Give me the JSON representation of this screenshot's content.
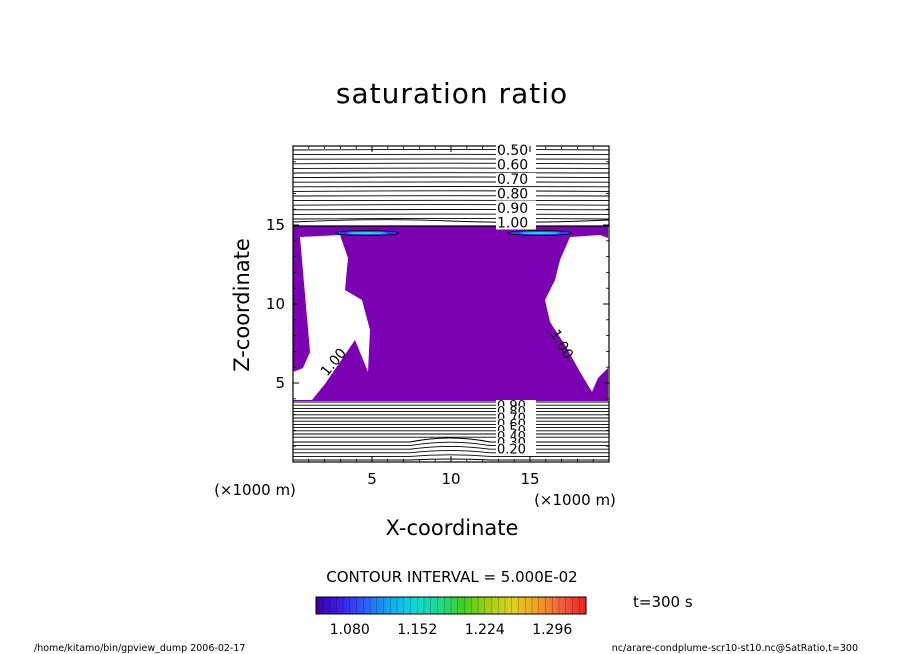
{
  "chart_data": {
    "type": "contour",
    "title": "saturation ratio",
    "xlabel": "X-coordinate",
    "ylabel": "Z-coordinate",
    "x_unit_label": "(×1000 m)",
    "y_unit_label": "(×1000 m)",
    "xlim": [
      0,
      20
    ],
    "ylim": [
      0,
      20
    ],
    "x_ticks": [
      "5",
      "10",
      "15"
    ],
    "x_tick_values": [
      5,
      10,
      15
    ],
    "y_ticks": [
      "5",
      "10",
      "15"
    ],
    "y_tick_values": [
      5,
      10,
      15
    ],
    "upper_contour_labels": [
      "0.50",
      "0.60",
      "0.70",
      "0.80",
      "0.90",
      "1.00"
    ],
    "upper_contour_levels": [
      0.5,
      0.6,
      0.7,
      0.8,
      0.9,
      1.0
    ],
    "lower_contour_labels": [
      "0.90",
      "0.80",
      "0.70",
      "0.60",
      "0.50",
      "0.40",
      "0.30",
      "0.20"
    ],
    "lower_contour_levels": [
      0.9,
      0.8,
      0.7,
      0.6,
      0.5,
      0.4,
      0.3,
      0.2
    ],
    "side_contour_labels": [
      "1.00",
      "1.00"
    ],
    "contour_interval_text": "CONTOUR INTERVAL = 5.000E-02",
    "time_label": "t=300 s",
    "colorbar_ticks": [
      "1.080",
      "1.152",
      "1.224",
      "1.296"
    ],
    "colorbar_range": [
      1.044,
      1.332
    ],
    "colorbar_colors": [
      "#3a00a8",
      "#3c1ee6",
      "#2c60f6",
      "#10a8f0",
      "#10d8d8",
      "#20d890",
      "#40d020",
      "#a0d010",
      "#e0d020",
      "#f0a020",
      "#f06040",
      "#f02020"
    ],
    "fill_color": "#7a00b2",
    "footer_left": "/home/kitamo/bin/gpview_dump  2006-02-17",
    "footer_right": "nc/arare-condplume-scr10-st10.nc@SatRatio,t=300"
  }
}
